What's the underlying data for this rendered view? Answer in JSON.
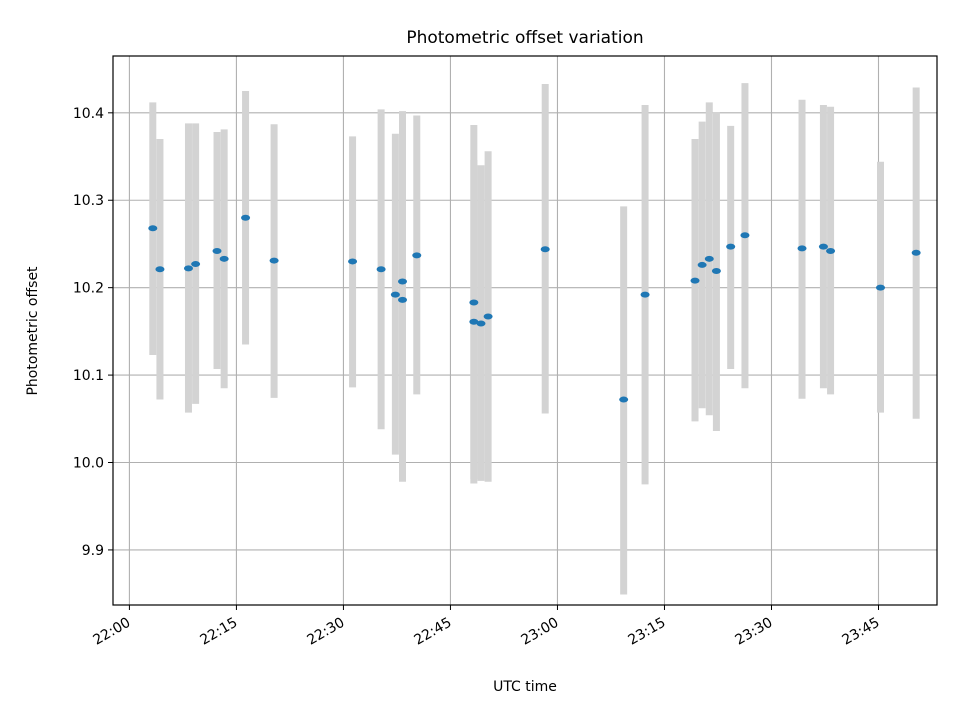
{
  "chart_data": {
    "type": "scatter",
    "title": "Photometric offset variation",
    "xlabel": "UTC time",
    "ylabel": "Photometric offset",
    "x_ticks": [
      "22:00",
      "22:15",
      "22:30",
      "22:45",
      "23:00",
      "23:15",
      "23:30",
      "23:45"
    ],
    "x_tick_minutes": [
      0,
      15,
      30,
      45,
      60,
      75,
      90,
      105
    ],
    "xlim_minutes": [
      -2.3,
      113.2
    ],
    "y_ticks": [
      "9.9",
      "10.0",
      "10.1",
      "10.2",
      "10.3",
      "10.4"
    ],
    "y_tick_values": [
      9.9,
      10.0,
      10.1,
      10.2,
      10.3,
      10.4
    ],
    "ylim": [
      9.837,
      10.465
    ],
    "grid": true,
    "marker_color": "#1f77b4",
    "errorbar_color": "#d3d3d3",
    "points": [
      {
        "time": "22:03",
        "y": 10.268,
        "ylow": 10.123,
        "yhigh": 10.412
      },
      {
        "time": "22:04",
        "y": 10.221,
        "ylow": 10.072,
        "yhigh": 10.37
      },
      {
        "time": "22:08",
        "y": 10.222,
        "ylow": 10.057,
        "yhigh": 10.388
      },
      {
        "time": "22:09",
        "y": 10.227,
        "ylow": 10.067,
        "yhigh": 10.388
      },
      {
        "time": "22:12",
        "y": 10.242,
        "ylow": 10.107,
        "yhigh": 10.378
      },
      {
        "time": "22:13",
        "y": 10.233,
        "ylow": 10.085,
        "yhigh": 10.381
      },
      {
        "time": "22:16",
        "y": 10.28,
        "ylow": 10.135,
        "yhigh": 10.425
      },
      {
        "time": "22:20",
        "y": 10.231,
        "ylow": 10.074,
        "yhigh": 10.387
      },
      {
        "time": "22:31",
        "y": 10.23,
        "ylow": 10.086,
        "yhigh": 10.373
      },
      {
        "time": "22:35",
        "y": 10.221,
        "ylow": 10.038,
        "yhigh": 10.404
      },
      {
        "time": "22:37",
        "y": 10.192,
        "ylow": 10.009,
        "yhigh": 10.376
      },
      {
        "time": "22:38",
        "y": 10.207,
        "ylow": 10.012,
        "yhigh": 10.402
      },
      {
        "time": "22:38",
        "y": 10.186,
        "ylow": 9.978,
        "yhigh": 10.394
      },
      {
        "time": "22:40",
        "y": 10.237,
        "ylow": 10.078,
        "yhigh": 10.397
      },
      {
        "time": "22:48",
        "y": 10.183,
        "ylow": 9.981,
        "yhigh": 10.386
      },
      {
        "time": "22:48",
        "y": 10.161,
        "ylow": 9.976,
        "yhigh": 10.346
      },
      {
        "time": "22:49",
        "y": 10.159,
        "ylow": 9.979,
        "yhigh": 10.34
      },
      {
        "time": "22:50",
        "y": 10.167,
        "ylow": 9.978,
        "yhigh": 10.356
      },
      {
        "time": "22:58",
        "y": 10.244,
        "ylow": 10.056,
        "yhigh": 10.433
      },
      {
        "time": "23:09",
        "y": 10.072,
        "ylow": 9.849,
        "yhigh": 10.293
      },
      {
        "time": "23:12",
        "y": 10.192,
        "ylow": 9.975,
        "yhigh": 10.409
      },
      {
        "time": "23:19",
        "y": 10.208,
        "ylow": 10.047,
        "yhigh": 10.37
      },
      {
        "time": "23:20",
        "y": 10.226,
        "ylow": 10.062,
        "yhigh": 10.39
      },
      {
        "time": "23:21",
        "y": 10.233,
        "ylow": 10.054,
        "yhigh": 10.412
      },
      {
        "time": "23:22",
        "y": 10.219,
        "ylow": 10.036,
        "yhigh": 10.401
      },
      {
        "time": "23:24",
        "y": 10.247,
        "ylow": 10.107,
        "yhigh": 10.385
      },
      {
        "time": "23:26",
        "y": 10.26,
        "ylow": 10.085,
        "yhigh": 10.434
      },
      {
        "time": "23:34",
        "y": 10.245,
        "ylow": 10.073,
        "yhigh": 10.415
      },
      {
        "time": "23:37",
        "y": 10.247,
        "ylow": 10.085,
        "yhigh": 10.409
      },
      {
        "time": "23:38",
        "y": 10.242,
        "ylow": 10.078,
        "yhigh": 10.407
      },
      {
        "time": "23:45",
        "y": 10.2,
        "ylow": 10.057,
        "yhigh": 10.344
      },
      {
        "time": "23:50",
        "y": 10.24,
        "ylow": 10.05,
        "yhigh": 10.429
      }
    ]
  }
}
